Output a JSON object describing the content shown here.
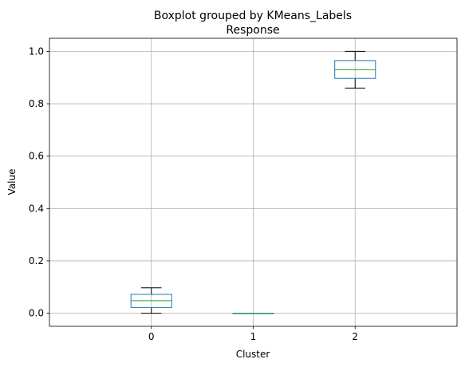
{
  "chart_data": {
    "type": "box",
    "suptitle": "Boxplot grouped by KMeans_Labels",
    "title": "Response",
    "xlabel": "Cluster",
    "ylabel": "Value",
    "categories": [
      "0",
      "1",
      "2"
    ],
    "boxes": [
      {
        "category": "0",
        "whisker_low": 0.0,
        "q1": 0.022,
        "median": 0.048,
        "q3": 0.072,
        "whisker_high": 0.097
      },
      {
        "category": "1",
        "whisker_low": 0.0,
        "q1": 0.0,
        "median": 0.0,
        "q3": 0.0,
        "whisker_high": 0.0
      },
      {
        "category": "2",
        "whisker_low": 0.86,
        "q1": 0.897,
        "median": 0.93,
        "q3": 0.965,
        "whisker_high": 1.0
      }
    ],
    "yticks": [
      0.0,
      0.2,
      0.4,
      0.6,
      0.8,
      1.0
    ],
    "ytick_labels": [
      "0.0",
      "0.2",
      "0.4",
      "0.6",
      "0.8",
      "1.0"
    ],
    "ylim": [
      -0.05,
      1.05
    ],
    "grid": true,
    "colors": {
      "box": "#1f77b4",
      "median": "#2ca02c",
      "whisker": "#000000",
      "grid": "#b0b0b0"
    }
  }
}
